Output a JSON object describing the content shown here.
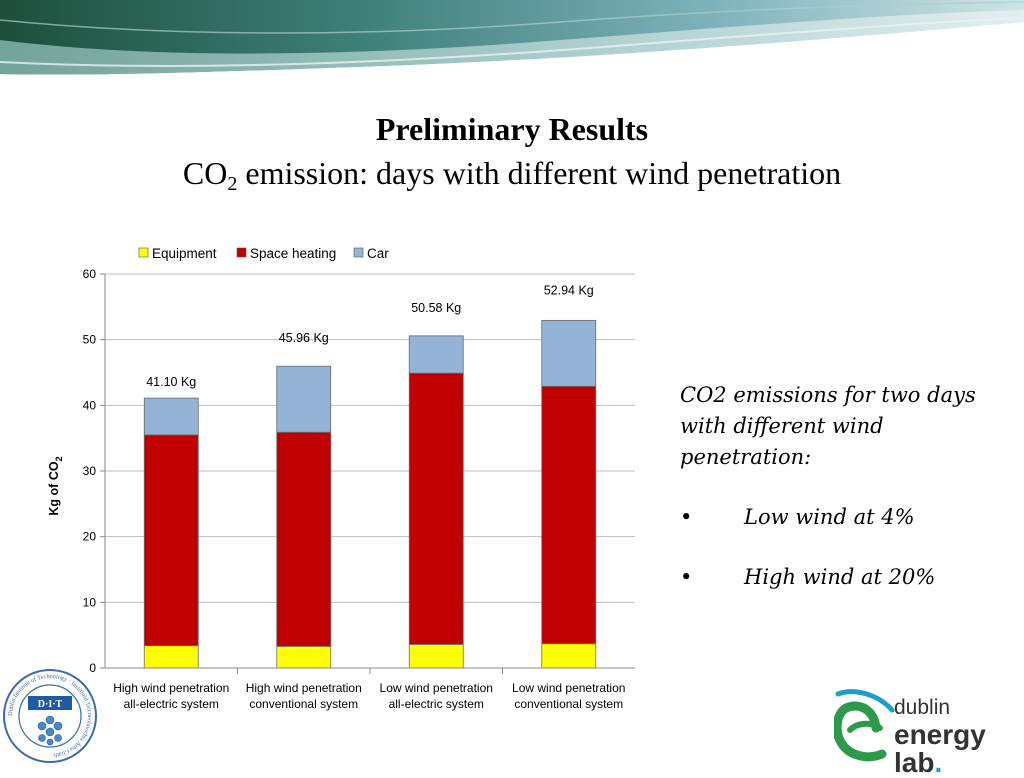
{
  "slide": {
    "title": "Preliminary Results",
    "subtitle_prefix": "CO",
    "subtitle_subscript": "2",
    "subtitle_suffix": " emission: days with different wind penetration"
  },
  "side_text": {
    "intro": "CO2 emissions for two days with different wind penetration:",
    "bullet_symbol": "•",
    "bullets": [
      "Low wind at 4%",
      "High wind at 20%"
    ]
  },
  "logos": {
    "left_logo_text": "D·I·T",
    "left_logo_ring_text": "Dublin Institute of Technology · Institiúid Teicneolaíochta Átha Cliath",
    "right_logo_line1": "dublin",
    "right_logo_line2": "energy lab",
    "right_logo_dot": "."
  },
  "chart_data": {
    "type": "bar",
    "stacked": true,
    "ylabel": "Kg of CO2",
    "ylabel_main": "Kg of CO",
    "ylabel_sub": "2",
    "ylim": [
      0,
      60
    ],
    "yticks": [
      0,
      10,
      20,
      30,
      40,
      50,
      60
    ],
    "grid": true,
    "legend_position": "top",
    "categories": [
      [
        "High wind penetration",
        "all-electric system"
      ],
      [
        "High wind penetration",
        "conventional system"
      ],
      [
        "Low wind penetration",
        "all-electric system"
      ],
      [
        "Low wind penetration",
        "conventional system"
      ]
    ],
    "series": [
      {
        "name": "Equipment",
        "color": "#ffff00",
        "values": [
          3.4,
          3.3,
          3.6,
          3.7
        ]
      },
      {
        "name": "Space heating",
        "color": "#c00000",
        "values": [
          32.1,
          32.6,
          41.3,
          39.2
        ]
      },
      {
        "name": "Car",
        "color": "#95b3d7",
        "values": [
          5.6,
          10.06,
          5.68,
          10.04
        ]
      }
    ],
    "totals": [
      41.1,
      45.96,
      50.58,
      52.94
    ],
    "total_labels": [
      "41.10 Kg",
      "45.96 Kg",
      "50.58 Kg",
      "52.94 Kg"
    ]
  }
}
